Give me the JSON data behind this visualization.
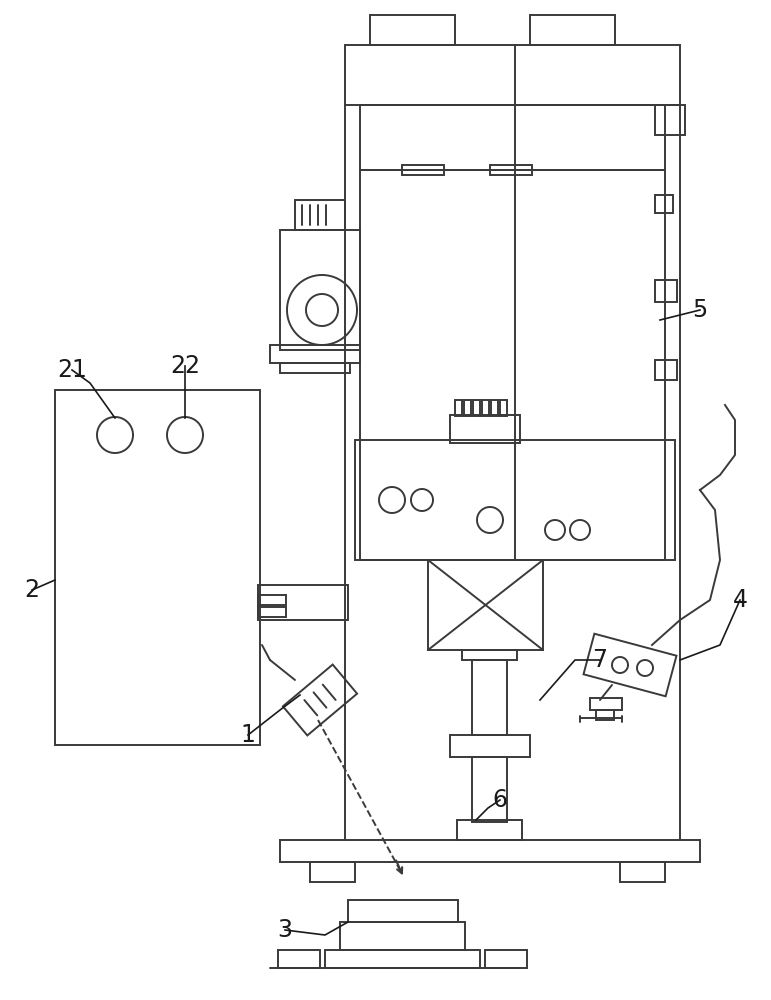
{
  "bg_color": "#ffffff",
  "lc": "#3a3a3a",
  "lw": 1.4,
  "fs": 17,
  "label_color": "#1a1a1a",
  "fig_w": 7.71,
  "fig_h": 10.0
}
